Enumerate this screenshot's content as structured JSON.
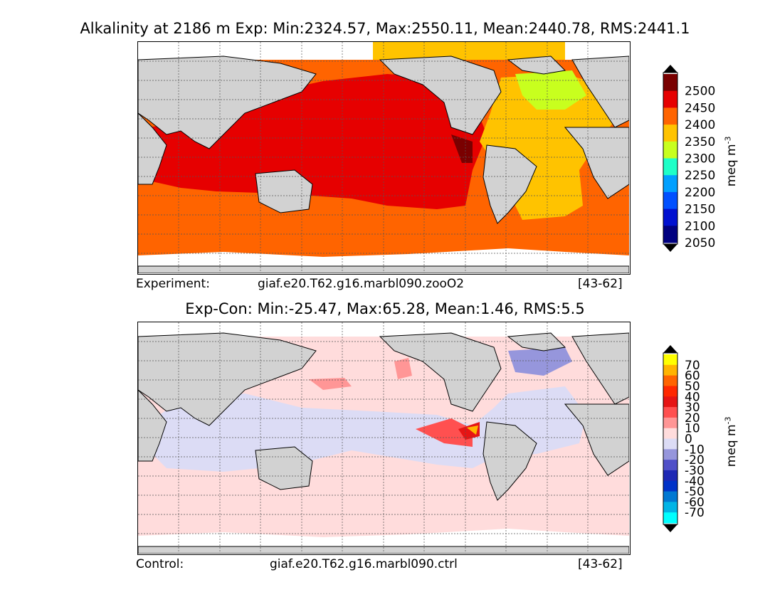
{
  "panel1": {
    "title": "Alkalinity at 2186 m Exp: Min:2324.57, Max:2550.11, Mean:2440.78, RMS:2441.1",
    "label": "Experiment:",
    "case": "giaf.e20.T62.g16.marbl090.zooO2",
    "years": "[43-62]",
    "colorbar": {
      "units": "meq m",
      "units_exp": "-3",
      "labels": [
        "2500",
        "2450",
        "2400",
        "2350",
        "2300",
        "2250",
        "2200",
        "2150",
        "2100",
        "2050"
      ],
      "colors": [
        "#7a0000",
        "#e60000",
        "#ff6400",
        "#ffc300",
        "#c8ff1e",
        "#1effc8",
        "#00a0ff",
        "#0050ff",
        "#0010d0",
        "#000080"
      ]
    }
  },
  "panel2": {
    "title": "Exp-Con: Min:-25.47, Max:65.28, Mean:1.46, RMS:5.5",
    "label": "Control:",
    "case": "giaf.e20.T62.g16.marbl090.ctrl",
    "years": "[43-62]",
    "colorbar": {
      "units": "meq m",
      "units_exp": "-3",
      "labels": [
        "70",
        "60",
        "50",
        "40",
        "30",
        "20",
        "10",
        "0",
        "-10",
        "-20",
        "-30",
        "-40",
        "-50",
        "-60",
        "-70"
      ],
      "colors": [
        "#ffff00",
        "#ffb400",
        "#ff6400",
        "#ff2800",
        "#e61414",
        "#ff5050",
        "#ff9696",
        "#ffdcdc",
        "#dcdcf5",
        "#9696dc",
        "#5050c8",
        "#1e28b4",
        "#0032c8",
        "#0078d2",
        "#00b4e6",
        "#00ffff"
      ]
    }
  },
  "map_colors": {
    "land": "#d2d2d2",
    "missing": "#ffffff",
    "grid": "#555555"
  }
}
